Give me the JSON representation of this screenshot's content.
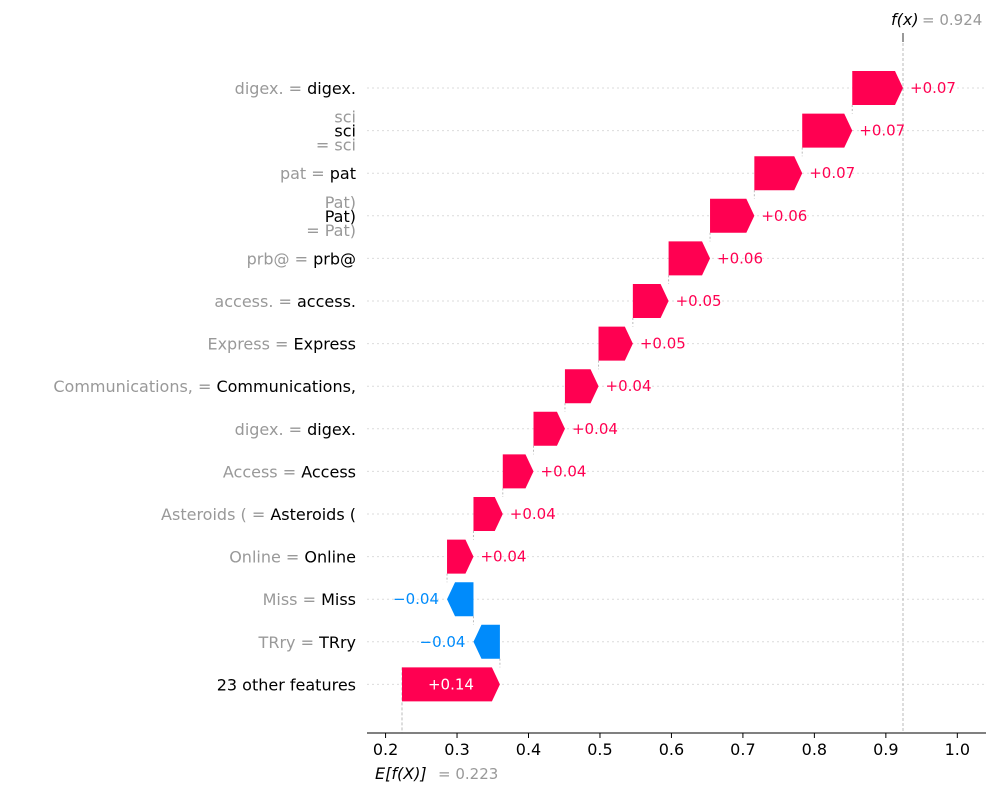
{
  "chart_data": {
    "type": "waterfall",
    "xlim": [
      0.17,
      1.04
    ],
    "x_ticks": [
      0.2,
      0.3,
      0.4,
      0.5,
      0.6,
      0.7,
      0.8,
      0.9,
      1.0
    ],
    "x_tick_labels": [
      "0.2",
      "0.3",
      "0.4",
      "0.5",
      "0.6",
      "0.7",
      "0.8",
      "0.9",
      "1.0"
    ],
    "base_value": 0.223,
    "base_label_prefix": "E[f(X)]",
    "base_label_value": "= 0.223",
    "output_value": 0.924,
    "output_label_prefix": "f(x)",
    "output_label_value": "= 0.924",
    "colors": {
      "positive": "#ff0051",
      "negative": "#008bfb",
      "grid": "#cccccc",
      "muted": "#999999"
    },
    "features": [
      {
        "gray": "digex. = ",
        "black": "digex.",
        "start": 0.853,
        "end": 0.924,
        "label": "+0.07"
      },
      {
        "gray_top": "sci",
        "black": "sci",
        "gray_bottom": "= sci",
        "start": 0.783,
        "end": 0.853,
        "label": "+0.07"
      },
      {
        "gray": "pat = ",
        "black": "pat",
        "start": 0.716,
        "end": 0.783,
        "label": "+0.07"
      },
      {
        "gray_top": "Pat)",
        "black": "Pat)",
        "gray_bottom": "= Pat)",
        "start": 0.654,
        "end": 0.716,
        "label": "+0.06"
      },
      {
        "gray": "prb@ = ",
        "black": "prb@",
        "start": 0.596,
        "end": 0.654,
        "label": "+0.06"
      },
      {
        "gray": "access. = ",
        "black": "access.",
        "start": 0.546,
        "end": 0.596,
        "label": "+0.05"
      },
      {
        "gray": "Express  = ",
        "black": "Express",
        "start": 0.498,
        "end": 0.546,
        "label": "+0.05"
      },
      {
        "gray": "Communications,  = ",
        "black": "Communications,",
        "start": 0.451,
        "end": 0.498,
        "label": "+0.04"
      },
      {
        "gray": "digex. = ",
        "black": "digex.",
        "start": 0.407,
        "end": 0.451,
        "label": "+0.04"
      },
      {
        "gray": "Access  = ",
        "black": "Access",
        "start": 0.364,
        "end": 0.407,
        "label": "+0.04"
      },
      {
        "gray": "Asteroids ( = ",
        "black": "Asteroids (",
        "start": 0.323,
        "end": 0.364,
        "label": "+0.04"
      },
      {
        "gray": "Online  = ",
        "black": "Online",
        "start": 0.286,
        "end": 0.323,
        "label": "+0.04"
      },
      {
        "gray": "Miss  = ",
        "black": "Miss",
        "start": 0.323,
        "end": 0.286,
        "label": "−0.04"
      },
      {
        "gray": "TRry  = ",
        "black": "TRry",
        "start": 0.36,
        "end": 0.323,
        "label": "−0.04"
      },
      {
        "gray": "",
        "black": "23 other features",
        "start": 0.223,
        "end": 0.36,
        "label": "+0.14"
      }
    ]
  }
}
